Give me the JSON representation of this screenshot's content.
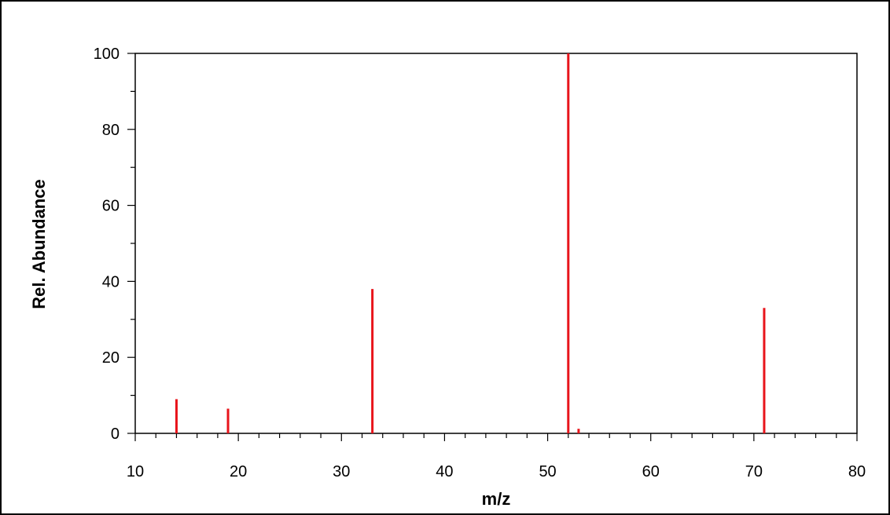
{
  "chart_data": {
    "type": "bar",
    "xlabel": "m/z",
    "ylabel": "Rel. Abundance",
    "xlim": [
      10,
      80
    ],
    "ylim": [
      0,
      100
    ],
    "x_ticks": [
      10,
      20,
      30,
      40,
      50,
      60,
      70,
      80
    ],
    "y_ticks": [
      0,
      20,
      40,
      60,
      80,
      100
    ],
    "grid": false,
    "bar_color": "#e8141b",
    "points": [
      {
        "x": 14,
        "y": 9
      },
      {
        "x": 19,
        "y": 6.5
      },
      {
        "x": 33,
        "y": 38
      },
      {
        "x": 52,
        "y": 100
      },
      {
        "x": 53,
        "y": 1.2
      },
      {
        "x": 71,
        "y": 33
      }
    ]
  }
}
